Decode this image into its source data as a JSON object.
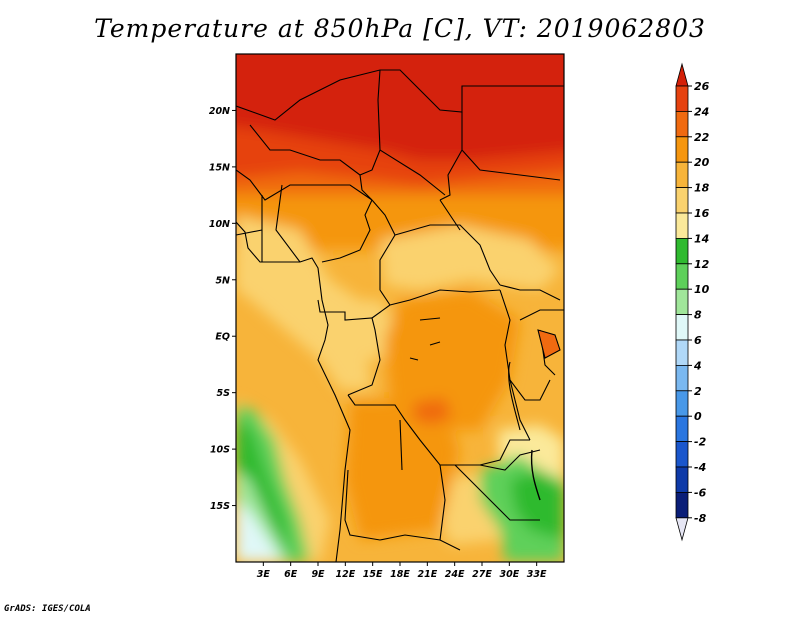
{
  "title": "Temperature at 850hPa [C], VT: 2019062803",
  "footer": "GrADS: IGES/COLA",
  "map": {
    "lat_range": [
      -20,
      25
    ],
    "lon_range": [
      0,
      36
    ],
    "lat_ticks": [
      {
        "value": 20,
        "label": "20N"
      },
      {
        "value": 15,
        "label": "15N"
      },
      {
        "value": 10,
        "label": "10N"
      },
      {
        "value": 5,
        "label": "5N"
      },
      {
        "value": 0,
        "label": "EQ"
      },
      {
        "value": -5,
        "label": "5S"
      },
      {
        "value": -10,
        "label": "10S"
      },
      {
        "value": -15,
        "label": "15S"
      }
    ],
    "lon_ticks": [
      {
        "value": 3,
        "label": "3E"
      },
      {
        "value": 6,
        "label": "6E"
      },
      {
        "value": 9,
        "label": "9E"
      },
      {
        "value": 12,
        "label": "12E"
      },
      {
        "value": 15,
        "label": "15E"
      },
      {
        "value": 18,
        "label": "18E"
      },
      {
        "value": 21,
        "label": "21E"
      },
      {
        "value": 24,
        "label": "24E"
      },
      {
        "value": 27,
        "label": "27E"
      },
      {
        "value": 30,
        "label": "30E"
      },
      {
        "value": 33,
        "label": "33E"
      }
    ]
  },
  "colorbar": {
    "labels": [
      "26",
      "24",
      "22",
      "20",
      "18",
      "16",
      "14",
      "12",
      "10",
      "8",
      "6",
      "4",
      "2",
      "0",
      "-2",
      "-4",
      "-6",
      "-8"
    ],
    "colors": [
      "#d42008",
      "#e64210",
      "#f06a10",
      "#f5960f",
      "#f7b43a",
      "#fad26e",
      "#fbe99a",
      "#2fba2f",
      "#5ed05a",
      "#a0e69a",
      "#e0f8f8",
      "#b0d8f8",
      "#7ab8f0",
      "#4898e8",
      "#2a76e0",
      "#1a56cc",
      "#0e3aa8",
      "#0a1e78"
    ],
    "low_end_color": "#e6e6f4"
  }
}
